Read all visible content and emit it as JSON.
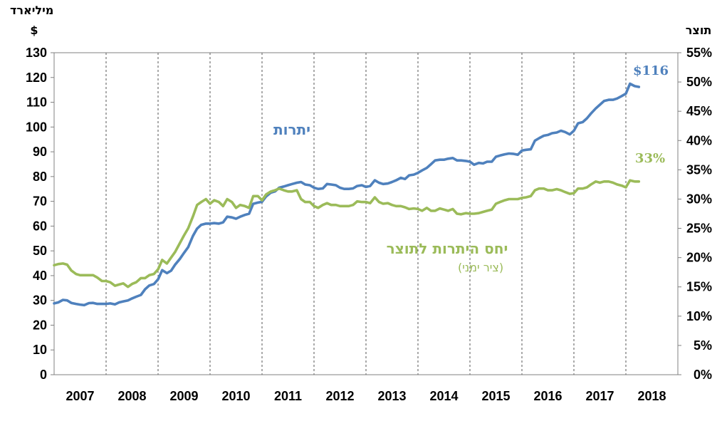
{
  "chart_data": {
    "type": "line",
    "x_labels": [
      "2007",
      "2008",
      "2009",
      "2010",
      "2011",
      "2012",
      "2013",
      "2014",
      "2015",
      "2016",
      "2017",
      "2018"
    ],
    "left_axis": {
      "title_line1": "מיליארד",
      "title_line2": "$",
      "ylim": [
        0,
        130
      ],
      "ticks": [
        "0",
        "10",
        "20",
        "30",
        "40",
        "50",
        "60",
        "70",
        "80",
        "90",
        "100",
        "110",
        "120",
        "130"
      ]
    },
    "right_axis": {
      "title": "תוצר",
      "ylim": [
        0,
        55
      ],
      "ticks": [
        "0%",
        "5%",
        "10%",
        "15%",
        "20%",
        "25%",
        "30%",
        "35%",
        "40%",
        "45%",
        "50%",
        "55%"
      ]
    },
    "x_range": [
      2007.0,
      2019.0
    ],
    "series": [
      {
        "name": "יתרות",
        "axis": "left",
        "color": "#4f81bd",
        "end_label": "$116",
        "points": [
          [
            2007.0,
            28.8
          ],
          [
            2007.08,
            29.2
          ],
          [
            2007.17,
            30.2
          ],
          [
            2007.25,
            30.0
          ],
          [
            2007.33,
            29.0
          ],
          [
            2007.42,
            28.6
          ],
          [
            2007.5,
            28.3
          ],
          [
            2007.58,
            28.1
          ],
          [
            2007.67,
            28.9
          ],
          [
            2007.75,
            29.0
          ],
          [
            2007.83,
            28.6
          ],
          [
            2007.92,
            28.6
          ],
          [
            2008.0,
            28.6
          ],
          [
            2008.08,
            28.8
          ],
          [
            2008.17,
            28.4
          ],
          [
            2008.25,
            29.2
          ],
          [
            2008.33,
            29.6
          ],
          [
            2008.42,
            30.0
          ],
          [
            2008.5,
            30.8
          ],
          [
            2008.58,
            31.5
          ],
          [
            2008.67,
            32.2
          ],
          [
            2008.75,
            34.5
          ],
          [
            2008.83,
            36.0
          ],
          [
            2008.92,
            36.6
          ],
          [
            2009.0,
            38.5
          ],
          [
            2009.08,
            42.2
          ],
          [
            2009.17,
            41.0
          ],
          [
            2009.25,
            42.0
          ],
          [
            2009.33,
            44.5
          ],
          [
            2009.42,
            46.8
          ],
          [
            2009.5,
            49.2
          ],
          [
            2009.58,
            51.5
          ],
          [
            2009.67,
            56.0
          ],
          [
            2009.75,
            59.0
          ],
          [
            2009.83,
            60.5
          ],
          [
            2009.92,
            61.0
          ],
          [
            2010.0,
            61.0
          ],
          [
            2010.08,
            61.2
          ],
          [
            2010.17,
            61.0
          ],
          [
            2010.25,
            61.5
          ],
          [
            2010.33,
            63.8
          ],
          [
            2010.42,
            63.5
          ],
          [
            2010.5,
            63.0
          ],
          [
            2010.58,
            63.8
          ],
          [
            2010.67,
            64.5
          ],
          [
            2010.75,
            65.0
          ],
          [
            2010.83,
            69.0
          ],
          [
            2010.92,
            69.5
          ],
          [
            2011.0,
            69.8
          ],
          [
            2011.08,
            72.0
          ],
          [
            2011.17,
            73.5
          ],
          [
            2011.25,
            74.0
          ],
          [
            2011.33,
            75.5
          ],
          [
            2011.42,
            76.0
          ],
          [
            2011.5,
            76.5
          ],
          [
            2011.58,
            77.0
          ],
          [
            2011.67,
            77.5
          ],
          [
            2011.75,
            77.8
          ],
          [
            2011.83,
            76.8
          ],
          [
            2011.92,
            76.5
          ],
          [
            2012.0,
            75.5
          ],
          [
            2012.08,
            75.0
          ],
          [
            2012.17,
            75.2
          ],
          [
            2012.25,
            77.0
          ],
          [
            2012.33,
            76.8
          ],
          [
            2012.42,
            76.5
          ],
          [
            2012.5,
            75.5
          ],
          [
            2012.58,
            75.0
          ],
          [
            2012.67,
            75.0
          ],
          [
            2012.75,
            75.2
          ],
          [
            2012.83,
            76.2
          ],
          [
            2012.92,
            76.5
          ],
          [
            2013.0,
            75.8
          ],
          [
            2013.08,
            76.2
          ],
          [
            2013.17,
            78.5
          ],
          [
            2013.25,
            77.5
          ],
          [
            2013.33,
            77.0
          ],
          [
            2013.42,
            77.2
          ],
          [
            2013.5,
            77.8
          ],
          [
            2013.58,
            78.5
          ],
          [
            2013.67,
            79.5
          ],
          [
            2013.75,
            79.0
          ],
          [
            2013.83,
            80.5
          ],
          [
            2013.92,
            80.8
          ],
          [
            2014.0,
            81.5
          ],
          [
            2014.08,
            82.5
          ],
          [
            2014.17,
            83.5
          ],
          [
            2014.25,
            85.0
          ],
          [
            2014.33,
            86.5
          ],
          [
            2014.42,
            86.8
          ],
          [
            2014.5,
            86.8
          ],
          [
            2014.58,
            87.2
          ],
          [
            2014.67,
            87.5
          ],
          [
            2014.75,
            86.5
          ],
          [
            2014.83,
            86.5
          ],
          [
            2014.92,
            86.3
          ],
          [
            2015.0,
            86.0
          ],
          [
            2015.08,
            84.8
          ],
          [
            2015.17,
            85.5
          ],
          [
            2015.25,
            85.3
          ],
          [
            2015.33,
            86.0
          ],
          [
            2015.42,
            86.0
          ],
          [
            2015.5,
            88.0
          ],
          [
            2015.58,
            88.5
          ],
          [
            2015.67,
            89.0
          ],
          [
            2015.75,
            89.3
          ],
          [
            2015.83,
            89.2
          ],
          [
            2015.92,
            88.8
          ],
          [
            2016.0,
            90.5
          ],
          [
            2016.08,
            90.8
          ],
          [
            2016.17,
            91.0
          ],
          [
            2016.25,
            94.5
          ],
          [
            2016.33,
            95.5
          ],
          [
            2016.42,
            96.5
          ],
          [
            2016.5,
            96.8
          ],
          [
            2016.58,
            97.5
          ],
          [
            2016.67,
            97.8
          ],
          [
            2016.75,
            98.5
          ],
          [
            2016.83,
            98.0
          ],
          [
            2016.92,
            97.0
          ],
          [
            2017.0,
            98.5
          ],
          [
            2017.08,
            101.5
          ],
          [
            2017.17,
            102.0
          ],
          [
            2017.25,
            103.5
          ],
          [
            2017.33,
            105.5
          ],
          [
            2017.42,
            107.5
          ],
          [
            2017.5,
            109.0
          ],
          [
            2017.58,
            110.5
          ],
          [
            2017.67,
            111.0
          ],
          [
            2017.75,
            111.0
          ],
          [
            2017.83,
            111.5
          ],
          [
            2017.92,
            112.5
          ],
          [
            2018.0,
            113.5
          ],
          [
            2018.08,
            117.5
          ],
          [
            2018.17,
            116.5
          ],
          [
            2018.25,
            116.2
          ]
        ]
      },
      {
        "name": "יחס היתרות לתוצר",
        "name_sub": "(ציר ימני)",
        "axis": "right",
        "color": "#9bbb59",
        "end_label": "33%",
        "points": [
          [
            2007.0,
            18.7
          ],
          [
            2007.08,
            18.9
          ],
          [
            2007.17,
            19.0
          ],
          [
            2007.25,
            18.8
          ],
          [
            2007.33,
            17.8
          ],
          [
            2007.42,
            17.2
          ],
          [
            2007.5,
            17.0
          ],
          [
            2007.58,
            17.0
          ],
          [
            2007.67,
            17.0
          ],
          [
            2007.75,
            17.0
          ],
          [
            2007.83,
            16.6
          ],
          [
            2007.92,
            16.0
          ],
          [
            2008.0,
            16.0
          ],
          [
            2008.08,
            15.8
          ],
          [
            2008.17,
            15.2
          ],
          [
            2008.25,
            15.4
          ],
          [
            2008.33,
            15.6
          ],
          [
            2008.42,
            15.0
          ],
          [
            2008.5,
            15.5
          ],
          [
            2008.58,
            15.8
          ],
          [
            2008.67,
            16.5
          ],
          [
            2008.75,
            16.5
          ],
          [
            2008.83,
            17.0
          ],
          [
            2008.92,
            17.2
          ],
          [
            2009.0,
            18.0
          ],
          [
            2009.08,
            19.6
          ],
          [
            2009.17,
            19.0
          ],
          [
            2009.25,
            20.0
          ],
          [
            2009.33,
            21.0
          ],
          [
            2009.42,
            22.5
          ],
          [
            2009.5,
            23.8
          ],
          [
            2009.58,
            25.0
          ],
          [
            2009.67,
            27.0
          ],
          [
            2009.75,
            29.0
          ],
          [
            2009.83,
            29.5
          ],
          [
            2009.92,
            30.0
          ],
          [
            2010.0,
            29.2
          ],
          [
            2010.08,
            29.8
          ],
          [
            2010.17,
            29.5
          ],
          [
            2010.25,
            28.8
          ],
          [
            2010.33,
            30.0
          ],
          [
            2010.42,
            29.5
          ],
          [
            2010.5,
            28.5
          ],
          [
            2010.58,
            29.0
          ],
          [
            2010.67,
            28.8
          ],
          [
            2010.75,
            28.5
          ],
          [
            2010.83,
            30.5
          ],
          [
            2010.92,
            30.5
          ],
          [
            2011.0,
            29.8
          ],
          [
            2011.08,
            30.8
          ],
          [
            2011.17,
            31.3
          ],
          [
            2011.25,
            31.5
          ],
          [
            2011.33,
            31.8
          ],
          [
            2011.42,
            31.5
          ],
          [
            2011.5,
            31.3
          ],
          [
            2011.58,
            31.3
          ],
          [
            2011.67,
            31.5
          ],
          [
            2011.75,
            30.0
          ],
          [
            2011.83,
            29.5
          ],
          [
            2011.92,
            29.5
          ],
          [
            2012.0,
            28.8
          ],
          [
            2012.08,
            28.5
          ],
          [
            2012.17,
            29.0
          ],
          [
            2012.25,
            29.3
          ],
          [
            2012.33,
            29.0
          ],
          [
            2012.42,
            29.0
          ],
          [
            2012.5,
            28.8
          ],
          [
            2012.58,
            28.8
          ],
          [
            2012.67,
            28.8
          ],
          [
            2012.75,
            29.0
          ],
          [
            2012.83,
            29.6
          ],
          [
            2012.92,
            29.5
          ],
          [
            2013.0,
            29.5
          ],
          [
            2013.08,
            29.3
          ],
          [
            2013.17,
            30.3
          ],
          [
            2013.25,
            29.5
          ],
          [
            2013.33,
            29.2
          ],
          [
            2013.42,
            29.3
          ],
          [
            2013.5,
            29.0
          ],
          [
            2013.58,
            28.8
          ],
          [
            2013.67,
            28.8
          ],
          [
            2013.75,
            28.6
          ],
          [
            2013.83,
            28.3
          ],
          [
            2013.92,
            28.4
          ],
          [
            2014.0,
            28.3
          ],
          [
            2014.08,
            28.0
          ],
          [
            2014.17,
            28.5
          ],
          [
            2014.25,
            28.0
          ],
          [
            2014.33,
            28.0
          ],
          [
            2014.42,
            28.4
          ],
          [
            2014.5,
            28.2
          ],
          [
            2014.58,
            28.0
          ],
          [
            2014.67,
            28.3
          ],
          [
            2014.75,
            27.5
          ],
          [
            2014.83,
            27.4
          ],
          [
            2014.92,
            27.6
          ],
          [
            2015.0,
            27.5
          ],
          [
            2015.08,
            27.5
          ],
          [
            2015.17,
            27.6
          ],
          [
            2015.25,
            27.8
          ],
          [
            2015.33,
            28.0
          ],
          [
            2015.42,
            28.2
          ],
          [
            2015.5,
            29.2
          ],
          [
            2015.58,
            29.5
          ],
          [
            2015.67,
            29.8
          ],
          [
            2015.75,
            30.0
          ],
          [
            2015.83,
            30.0
          ],
          [
            2015.92,
            30.0
          ],
          [
            2016.0,
            30.2
          ],
          [
            2016.08,
            30.3
          ],
          [
            2016.17,
            30.5
          ],
          [
            2016.25,
            31.5
          ],
          [
            2016.33,
            31.8
          ],
          [
            2016.42,
            31.8
          ],
          [
            2016.5,
            31.5
          ],
          [
            2016.58,
            31.5
          ],
          [
            2016.67,
            31.7
          ],
          [
            2016.75,
            31.5
          ],
          [
            2016.83,
            31.2
          ],
          [
            2016.92,
            30.9
          ],
          [
            2017.0,
            31.0
          ],
          [
            2017.08,
            31.8
          ],
          [
            2017.17,
            31.8
          ],
          [
            2017.25,
            32.0
          ],
          [
            2017.33,
            32.5
          ],
          [
            2017.42,
            33.0
          ],
          [
            2017.5,
            32.8
          ],
          [
            2017.58,
            33.0
          ],
          [
            2017.67,
            33.0
          ],
          [
            2017.75,
            32.8
          ],
          [
            2017.83,
            32.5
          ],
          [
            2017.92,
            32.3
          ],
          [
            2018.0,
            32.0
          ],
          [
            2018.08,
            33.2
          ],
          [
            2018.17,
            33.0
          ],
          [
            2018.25,
            33.0
          ]
        ]
      }
    ]
  }
}
